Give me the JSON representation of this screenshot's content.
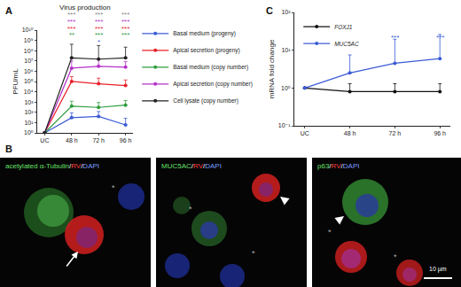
{
  "chart_data": [
    {
      "panel": "A",
      "type": "line",
      "title": "Virus production",
      "y_label": "PFU/mL",
      "categories": [
        "UC",
        "48 h",
        "72 h",
        "96 h"
      ],
      "log": "y",
      "ylim": [
        1,
        10000000000
      ],
      "yticks": [
        {
          "value": 1,
          "label": "10⁰"
        },
        {
          "value": 10,
          "label": "10¹"
        },
        {
          "value": 100,
          "label": "10²"
        },
        {
          "value": 1000,
          "label": "10³"
        },
        {
          "value": 10000,
          "label": "10⁴"
        },
        {
          "value": 100000,
          "label": "10⁵"
        },
        {
          "value": 1000000,
          "label": "10⁶"
        },
        {
          "value": 10000000,
          "label": "10⁷"
        },
        {
          "value": 100000000,
          "label": "10⁸"
        },
        {
          "value": 1000000000,
          "label": "10⁹"
        },
        {
          "value": 10000000000,
          "label": "10¹⁰"
        }
      ],
      "legend": "right",
      "series": [
        {
          "name": "Basal medium (progeny)",
          "color": "#3b5bd6",
          "values": [
            1,
            30,
            40,
            6
          ],
          "error_plus": [
            0,
            60,
            80,
            20
          ]
        },
        {
          "name": "Apical secretion (progeny)",
          "color": "#e8202a",
          "values": [
            1,
            100000,
            60000,
            40000
          ],
          "error_plus": [
            0,
            200000,
            150000,
            100000
          ]
        },
        {
          "name": "Basal medium (copy number)",
          "color": "#2e9e3e",
          "values": [
            1,
            400,
            300,
            500
          ],
          "error_plus": [
            0,
            800,
            600,
            900
          ]
        },
        {
          "name": "Apical secretion (copy number)",
          "color": "#b531c9",
          "values": [
            1,
            2000000,
            3000000,
            2500000
          ],
          "error_plus": [
            0,
            8000000,
            10000000,
            6000000
          ]
        },
        {
          "name": "Cell lysate (copy number)",
          "color": "#222222",
          "values": [
            1,
            20000000,
            15000000,
            20000000
          ],
          "error_plus": [
            0,
            400000000,
            300000000,
            200000000
          ]
        }
      ],
      "annotations": [
        {
          "x": "48 h",
          "texts": [
            {
              "text": "***",
              "color": "#888888"
            },
            {
              "text": "***",
              "color": "#b531c9"
            },
            {
              "text": "***",
              "color": "#e8202a"
            },
            {
              "text": "**",
              "color": "#2e9e3e"
            }
          ]
        },
        {
          "x": "72 h",
          "texts": [
            {
              "text": "***",
              "color": "#888888"
            },
            {
              "text": "***",
              "color": "#b531c9"
            },
            {
              "text": "***",
              "color": "#e8202a"
            },
            {
              "text": "***",
              "color": "#2e9e3e"
            },
            {
              "text": "*",
              "color": "#3b5bd6"
            }
          ]
        },
        {
          "x": "96 h",
          "texts": [
            {
              "text": "***",
              "color": "#888888"
            },
            {
              "text": "***",
              "color": "#b531c9"
            },
            {
              "text": "***",
              "color": "#e8202a"
            },
            {
              "text": "***",
              "color": "#2e9e3e"
            }
          ]
        }
      ]
    },
    {
      "panel": "C",
      "type": "line",
      "y_label": "mRNA fold change",
      "categories": [
        "UC",
        "48 h",
        "72 h",
        "96 h"
      ],
      "log": "y",
      "ylim": [
        0.1,
        100
      ],
      "yticks": [
        {
          "value": 0.1,
          "label": "10⁻¹"
        },
        {
          "value": 1,
          "label": "10⁰"
        },
        {
          "value": 10,
          "label": "10¹"
        },
        {
          "value": 100,
          "label": "10²"
        }
      ],
      "legend": "upper left",
      "reference_line": 1,
      "series": [
        {
          "name": "FOXJ1",
          "color": "#111111",
          "values": [
            1,
            0.8,
            0.8,
            0.8
          ],
          "error_plus": [
            0,
            0.5,
            0.5,
            0.5
          ]
        },
        {
          "name": "MUC5AC",
          "color": "#3b5bd6",
          "values": [
            1,
            2.5,
            4.5,
            6
          ],
          "error_plus": [
            0,
            5,
            15,
            20
          ]
        }
      ],
      "annotations": [
        {
          "x": "72 h",
          "texts": [
            {
              "text": "***",
              "color": "#3b5bd6"
            }
          ]
        },
        {
          "x": "96 h",
          "texts": [
            {
              "text": "***",
              "color": "#3b5bd6"
            }
          ]
        }
      ]
    }
  ],
  "panel_b": {
    "panel": "B",
    "scale_bar": "10 µm",
    "images": [
      {
        "label_parts": [
          {
            "text": "acetylated α-Tubulin",
            "color": "#66e066"
          },
          {
            "text": "/",
            "color": "#ffffff"
          },
          {
            "text": "RV",
            "color": "#ff4040"
          },
          {
            "text": "/",
            "color": "#ffffff"
          },
          {
            "text": "DAPI",
            "color": "#7a9cff"
          }
        ],
        "marks": [
          "*"
        ]
      },
      {
        "label_parts": [
          {
            "text": "MUC5AC",
            "color": "#66e066"
          },
          {
            "text": "/",
            "color": "#ffffff"
          },
          {
            "text": "RV",
            "color": "#ff4040"
          },
          {
            "text": "/",
            "color": "#ffffff"
          },
          {
            "text": "DAPI",
            "color": "#7a9cff"
          }
        ],
        "marks": [
          "*",
          "*"
        ]
      },
      {
        "label_parts": [
          {
            "text": "p63",
            "color": "#66e066"
          },
          {
            "text": "/",
            "color": "#ffffff"
          },
          {
            "text": "RV",
            "color": "#ff4040"
          },
          {
            "text": "/",
            "color": "#ffffff"
          },
          {
            "text": "DAPI",
            "color": "#7a9cff"
          }
        ],
        "marks": [
          "*",
          "*"
        ]
      }
    ]
  }
}
